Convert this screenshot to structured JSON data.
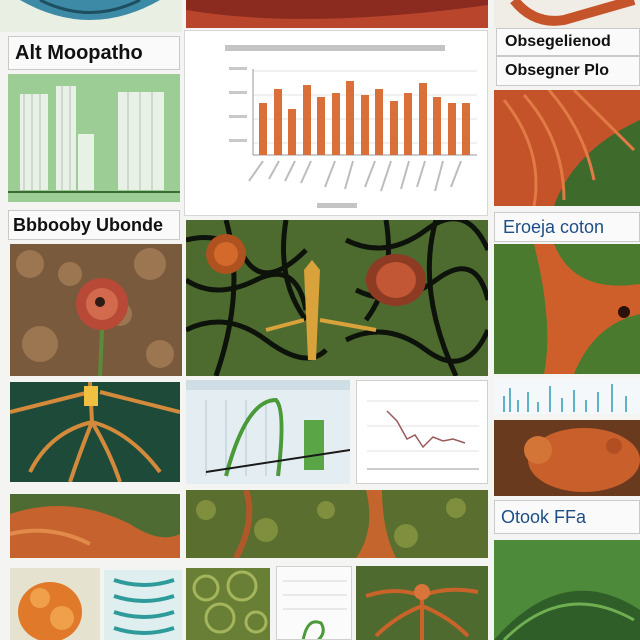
{
  "labels": {
    "alt_morphe": "Alt Moopatho",
    "observation_a": "Obsegelienod",
    "observation_b": "Obsegner Plo",
    "biology_theme": "Bbbooby Ubonde",
    "enzyme_coton": "Eroeja coton",
    "otook_ffo": "Otook FFa"
  },
  "colors": {
    "page_bg": "#f4f4f2",
    "bar_orange": "#d9703a",
    "tissue_green": "#4d6b2f",
    "root_orange": "#c8632a",
    "label_bg": "#fafafa"
  }
}
